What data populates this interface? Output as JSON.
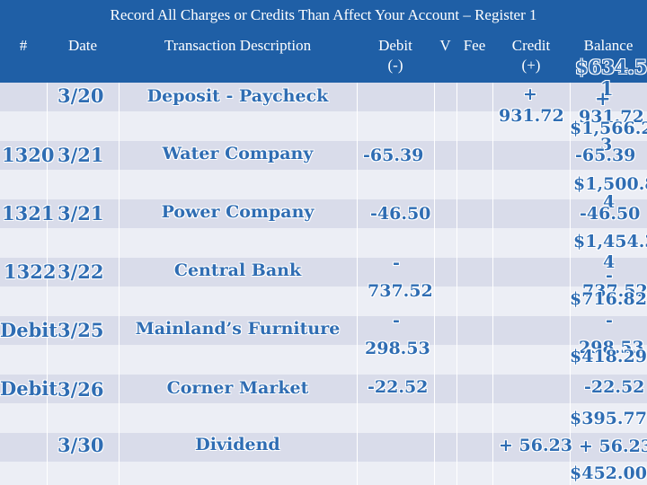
{
  "title": "Record All Charges or Credits Than Affect Your Account – Register 1",
  "headers": {
    "num": "#",
    "date": "Date",
    "description": "Transaction  Description",
    "debit": "Debit",
    "debit_sign": "(-)",
    "check": "V",
    "fee": "Fee",
    "credit": "Credit",
    "credit_sign": "(+)",
    "balance": "Balance"
  },
  "starting_balance": "$634.5",
  "rows": [
    {
      "num": "",
      "date": "3/20",
      "description": "Deposit - Paycheck",
      "debit": "",
      "credit_a": "+",
      "credit_b": "931.72",
      "bal_a": "1",
      "bal_b": "+",
      "bal_c": "931.72",
      "bal_d": "$1,566.2"
    },
    {
      "num": "1320",
      "date": "3/21",
      "description": "Water Company",
      "debit": "-65.39",
      "credit_a": "",
      "credit_b": "",
      "bal_a": "3",
      "bal_b": "",
      "bal_c": "-65.39",
      "bal_d": "$1,500.8"
    },
    {
      "num": "1321",
      "date": "3/21",
      "description": "Power Company",
      "debit": "-46.50",
      "credit_a": "",
      "credit_b": "",
      "bal_a": "4",
      "bal_b": "",
      "bal_c": "-46.50",
      "bal_d": "$1,454.3"
    },
    {
      "num": "1322",
      "date": "3/22",
      "description": "Central Bank",
      "debit": "-",
      "debit2": "737.52",
      "credit_a": "",
      "credit_b": "",
      "bal_a": "4",
      "bal_b": "-",
      "bal_c": "737.52",
      "bal_d": "$716.82"
    },
    {
      "num": "Debit",
      "date": "3/25",
      "description": "Mainland’s Furniture",
      "debit": "-",
      "debit2": "298.53",
      "credit_a": "",
      "credit_b": "",
      "bal_a": "",
      "bal_b": "-",
      "bal_c": "298.53",
      "bal_d": "$418.29"
    },
    {
      "num": "Debit",
      "date": "3/26",
      "description": "Corner Market",
      "debit": "-22.52",
      "credit_a": "",
      "credit_b": "",
      "bal_a": "",
      "bal_b": "",
      "bal_c": "-22.52",
      "bal_d": "$395.77"
    },
    {
      "num": "",
      "date": "3/30",
      "description": "Dividend",
      "debit": "",
      "credit_a": "",
      "credit_b": "+ 56.23",
      "bal_a": "",
      "bal_b": "",
      "bal_c": "+ 56.23",
      "bal_d": "$452.00"
    }
  ]
}
